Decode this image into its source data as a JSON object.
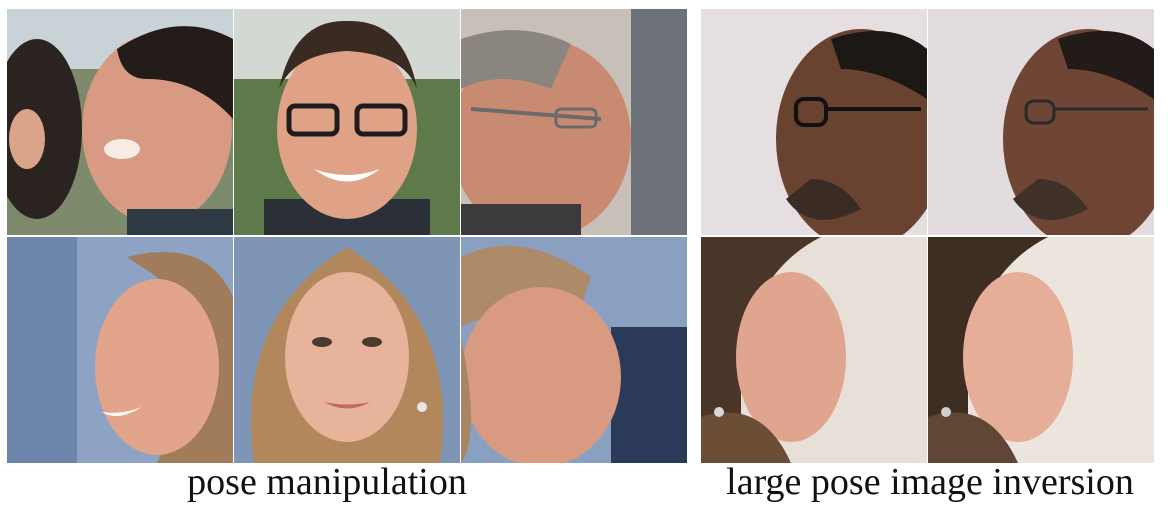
{
  "figure": {
    "left_caption": "pose manipulation",
    "right_caption": "large pose image inversion"
  },
  "left_grid": {
    "rows": [
      {
        "subject": "man-with-dark-hair",
        "tiles": [
          {
            "view": "profile-right-smiling"
          },
          {
            "view": "frontal-glasses-smiling"
          },
          {
            "view": "profile-right-glasses"
          }
        ]
      },
      {
        "subject": "woman-with-blonde-hair",
        "tiles": [
          {
            "view": "profile-left-smiling"
          },
          {
            "view": "frontal-smiling"
          },
          {
            "view": "profile-right"
          }
        ]
      }
    ]
  },
  "right_grid": {
    "rows": [
      {
        "subject": "man-with-beard-and-glasses",
        "tiles": [
          {
            "view": "input-profile-left"
          },
          {
            "view": "inverted-profile-left"
          }
        ]
      },
      {
        "subject": "woman-with-earring",
        "tiles": [
          {
            "view": "input-profile-right"
          },
          {
            "view": "inverted-profile-right"
          }
        ]
      }
    ]
  },
  "colors": {
    "skin_light": "#e9b49a",
    "skin_warm": "#d69476",
    "skin_dark": "#6b4433",
    "hair_dark": "#2a2320",
    "hair_blonde": "#b78a5e",
    "bg_foliage": "#5b7a45",
    "bg_sky": "#8fa6c7",
    "bg_studio": "#e4dde0"
  }
}
